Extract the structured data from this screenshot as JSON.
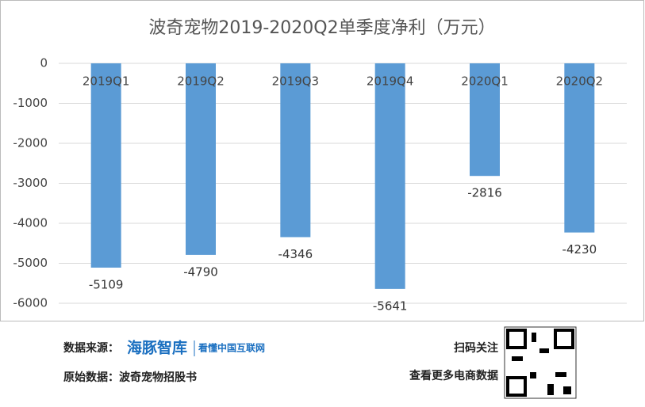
{
  "chart_data": {
    "type": "bar",
    "title": "波奇宠物2019-2020Q2单季度净利（万元）",
    "categories": [
      "2019Q1",
      "2019Q2",
      "2019Q3",
      "2019Q4",
      "2020Q1",
      "2020Q2"
    ],
    "values": [
      -5109,
      -4790,
      -4346,
      -5641,
      -2816,
      -4230
    ],
    "color": "#5b9bd5",
    "ylim": [
      -6000,
      0
    ],
    "yticks": [
      0,
      -1000,
      -2000,
      -3000,
      -4000,
      -5000,
      -6000
    ],
    "grid": true
  },
  "footer": {
    "source_label": "数据来源：",
    "logo": "海豚智库",
    "logo_tagline": "看懂中国互联网",
    "raw_source": "原始数据：波奇宠物招股书",
    "scan": "扫码关注",
    "more": "查看更多电商数据"
  }
}
